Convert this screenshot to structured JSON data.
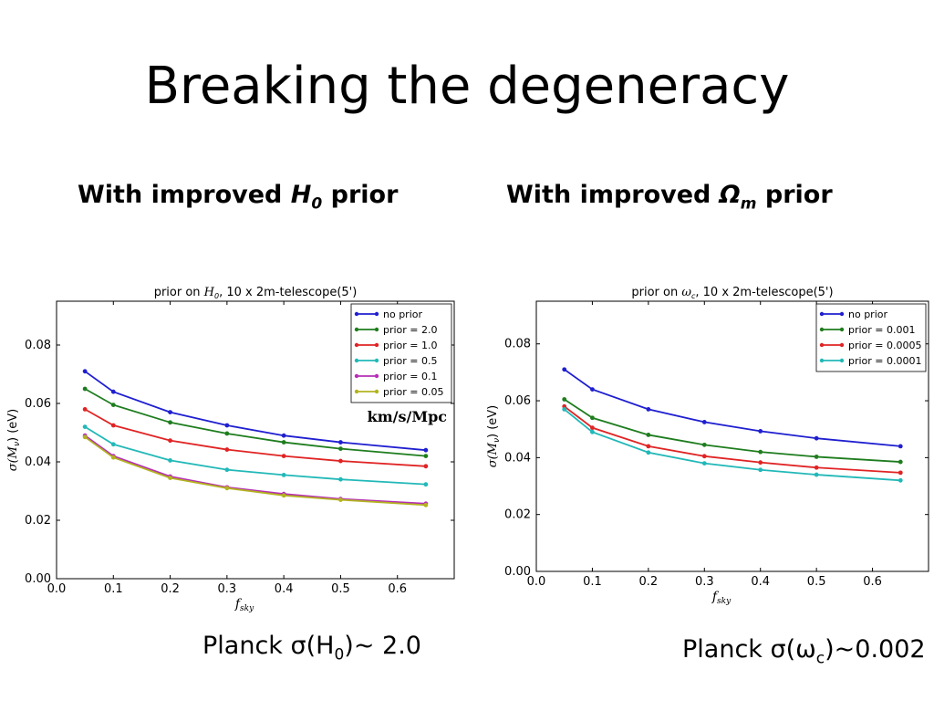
{
  "slide": {
    "title": "Breaking the degeneracy",
    "left_heading": {
      "pre": "With improved ",
      "sym": "H",
      "sub": "0",
      "post": " prior"
    },
    "right_heading": {
      "pre": "With improved ",
      "sym": "Ω",
      "sub": "m",
      "post": " prior"
    },
    "left_caption": {
      "pre": "Planck σ(H",
      "sub": "0",
      "post": ")~ 2.0"
    },
    "right_caption": {
      "pre": "Planck σ(ω",
      "sub": "c",
      "post": ")~0.002"
    }
  },
  "chart_data": [
    {
      "type": "line",
      "title_parts": {
        "pre": "prior on ",
        "sym": "H",
        "sub": "0",
        "post": ", 10 x 2m-telescope(5')"
      },
      "xlabel": {
        "sym": "f",
        "sub": "sky"
      },
      "ylabel": {
        "sym": "σ(M",
        "sub": "ν",
        "post": ") (eV)"
      },
      "xlim": [
        0.0,
        0.7
      ],
      "ylim": [
        0.0,
        0.095
      ],
      "xticks": [
        "0.0",
        "0.1",
        "0.2",
        "0.3",
        "0.4",
        "0.5",
        "0.6"
      ],
      "yticks": [
        "0.00",
        "0.02",
        "0.04",
        "0.06",
        "0.08"
      ],
      "legend_position": "top-right",
      "annotation": "km/s/Mpc",
      "x": [
        0.05,
        0.1,
        0.2,
        0.3,
        0.4,
        0.5,
        0.65
      ],
      "series": [
        {
          "name": "no prior",
          "color": "#1f1fd0",
          "values": [
            0.071,
            0.064,
            0.057,
            0.0525,
            0.049,
            0.0467,
            0.044
          ]
        },
        {
          "name": "prior = 2.0",
          "color": "#1e7d1e",
          "values": [
            0.065,
            0.0595,
            0.0535,
            0.0497,
            0.0467,
            0.0445,
            0.042
          ]
        },
        {
          "name": "prior = 1.0",
          "color": "#e02424",
          "values": [
            0.058,
            0.0525,
            0.0473,
            0.0442,
            0.042,
            0.0403,
            0.0385
          ]
        },
        {
          "name": "prior = 0.5",
          "color": "#22b8b8",
          "values": [
            0.052,
            0.046,
            0.0405,
            0.0373,
            0.0355,
            0.034,
            0.0323
          ]
        },
        {
          "name": "prior = 0.1",
          "color": "#b52fb5",
          "values": [
            0.049,
            0.042,
            0.035,
            0.0313,
            0.029,
            0.0273,
            0.0257
          ]
        },
        {
          "name": "prior = 0.05",
          "color": "#b3b320",
          "values": [
            0.0485,
            0.0415,
            0.0345,
            0.031,
            0.0285,
            0.027,
            0.0252
          ]
        }
      ]
    },
    {
      "type": "line",
      "title_parts": {
        "pre": "prior on ",
        "sym": "ω",
        "sub": "c",
        "post": ", 10 x 2m-telescope(5')"
      },
      "xlabel": {
        "sym": "f",
        "sub": "sky"
      },
      "ylabel": {
        "sym": "σ(M",
        "sub": "ν",
        "post": ") (eV)"
      },
      "xlim": [
        0.0,
        0.7
      ],
      "ylim": [
        0.0,
        0.095
      ],
      "xticks": [
        "0.0",
        "0.1",
        "0.2",
        "0.3",
        "0.4",
        "0.5",
        "0.6"
      ],
      "yticks": [
        "0.00",
        "0.02",
        "0.04",
        "0.06",
        "0.08"
      ],
      "legend_position": "top-right",
      "x": [
        0.05,
        0.1,
        0.2,
        0.3,
        0.4,
        0.5,
        0.65
      ],
      "series": [
        {
          "name": "no prior",
          "color": "#1f1fd0",
          "values": [
            0.071,
            0.064,
            0.057,
            0.0525,
            0.0493,
            0.0468,
            0.044
          ]
        },
        {
          "name": "prior = 0.001",
          "color": "#1e7d1e",
          "values": [
            0.0605,
            0.054,
            0.048,
            0.0445,
            0.042,
            0.0403,
            0.0385
          ]
        },
        {
          "name": "prior = 0.0005",
          "color": "#e02424",
          "values": [
            0.058,
            0.0505,
            0.044,
            0.0405,
            0.0383,
            0.0365,
            0.0347
          ]
        },
        {
          "name": "prior = 0.0001",
          "color": "#22b8b8",
          "values": [
            0.057,
            0.049,
            0.0418,
            0.038,
            0.0357,
            0.034,
            0.032
          ]
        }
      ]
    }
  ]
}
